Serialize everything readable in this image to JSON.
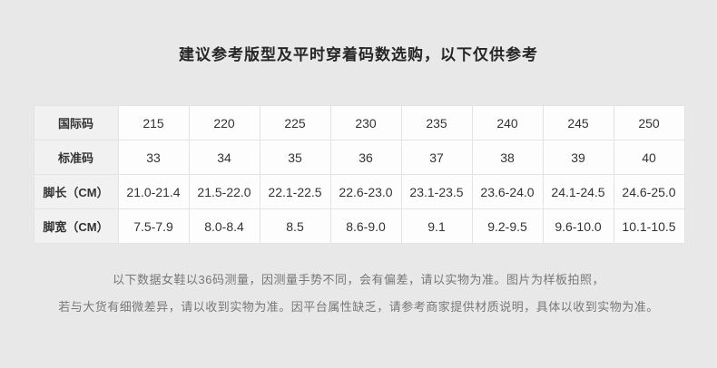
{
  "page": {
    "title": "建议参考版型及平时穿着码数选购，以下仅供参考",
    "notes": [
      "以下数据女鞋以36码测量，因测量手势不同，会有偏差，请以实物为准。图片为样板拍照，",
      "若与大货有细微差异，请以收到实物为准。因平台属性缺乏，请参考商家提供材质说明，具体以收到实物为准。"
    ]
  },
  "size_table": {
    "rows": [
      {
        "label": "国际码",
        "values": [
          "215",
          "220",
          "225",
          "230",
          "235",
          "240",
          "245",
          "250"
        ]
      },
      {
        "label": "标准码",
        "values": [
          "33",
          "34",
          "35",
          "36",
          "37",
          "38",
          "39",
          "40"
        ]
      },
      {
        "label": "脚长（CM）",
        "values": [
          "21.0-21.4",
          "21.5-22.0",
          "22.1-22.5",
          "22.6-23.0",
          "23.1-23.5",
          "23.6-24.0",
          "24.1-24.5",
          "24.6-25.0"
        ]
      },
      {
        "label": "脚宽（CM）",
        "values": [
          "7.5-7.9",
          "8.0-8.4",
          "8.5",
          "8.6-9.0",
          "9.1",
          "9.2-9.5",
          "9.6-10.0",
          "10.1-10.5"
        ]
      }
    ]
  },
  "colors": {
    "page_background": "#e8e8e8",
    "title_text": "#262626",
    "label_cell_background": "#f1f1f1",
    "data_cell_background": "#fdfdfd",
    "cell_border": "#e3e3e3",
    "cell_text": "#333333",
    "note_text": "#777777"
  }
}
